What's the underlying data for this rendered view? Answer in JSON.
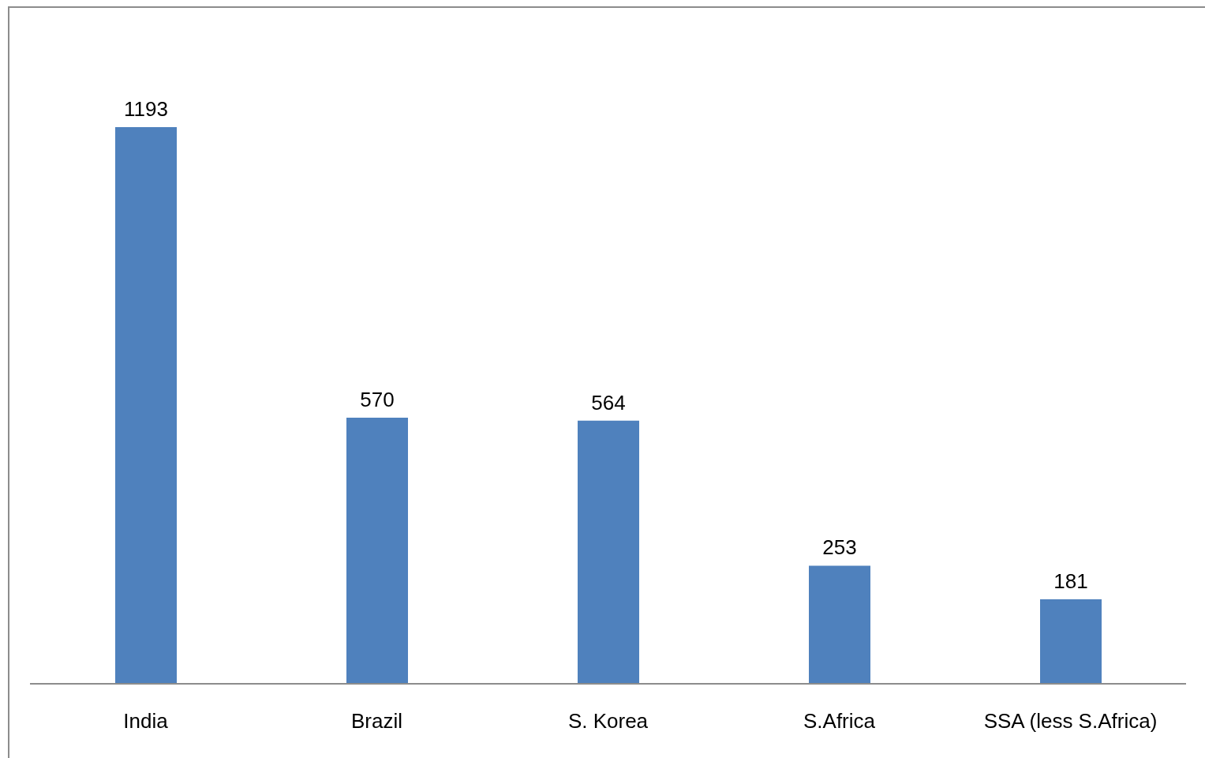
{
  "chart_data": {
    "type": "bar",
    "categories": [
      "India",
      "Brazil",
      "S. Korea",
      "S.Africa",
      "SSA (less S.Africa)"
    ],
    "values": [
      1193,
      570,
      564,
      253,
      181
    ],
    "color": "#4f81bd",
    "data_labels": true
  }
}
